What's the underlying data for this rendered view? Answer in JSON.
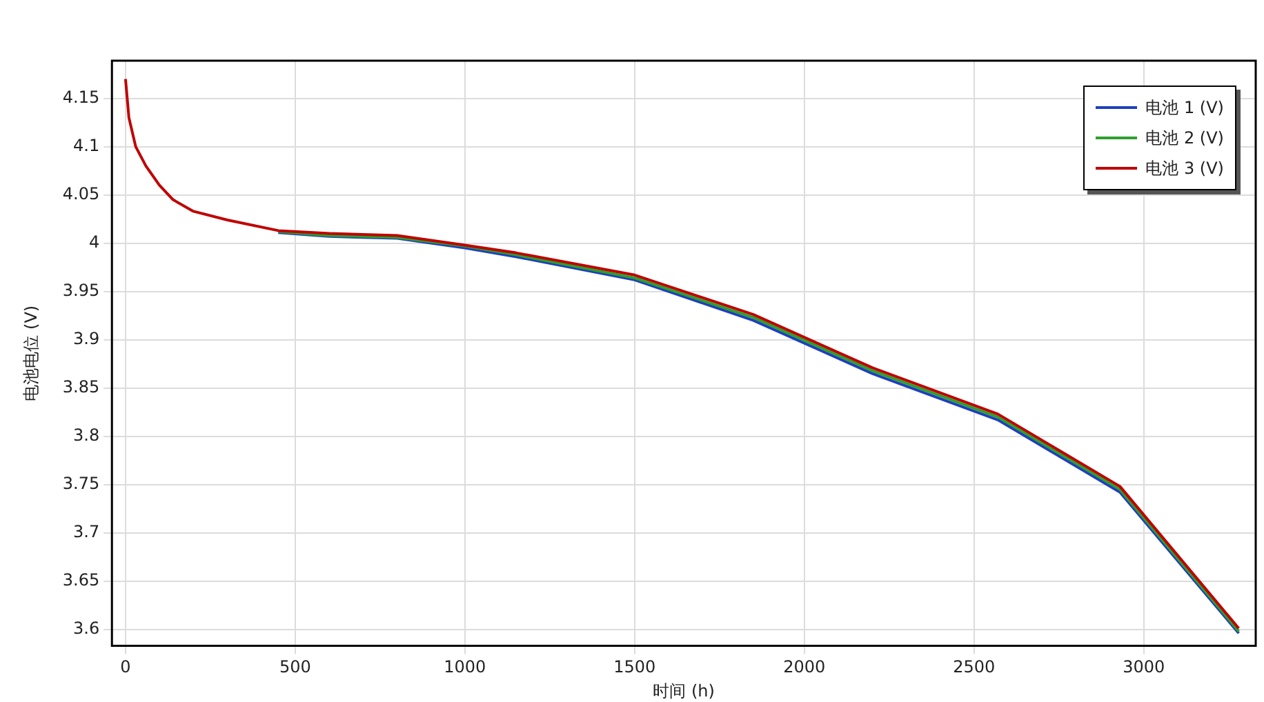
{
  "chart_data": {
    "type": "line",
    "xlabel": "时间 (h)",
    "ylabel": "电池电位 (V)",
    "xlim": [
      -40,
      3330
    ],
    "ylim": [
      3.583,
      4.189
    ],
    "xticks": [
      0,
      500,
      1000,
      1500,
      2000,
      2500,
      3000
    ],
    "yticks": [
      3.6,
      3.65,
      3.7,
      3.75,
      3.8,
      3.85,
      3.9,
      3.95,
      4,
      4.05,
      4.1,
      4.15
    ],
    "grid": true,
    "legend": "top right",
    "marker": "none",
    "line_style": "solid",
    "x": [
      0,
      10,
      30,
      60,
      100,
      140,
      200,
      300,
      450,
      600,
      800,
      1000,
      1150,
      1500,
      1850,
      2200,
      2570,
      2930,
      3280
    ],
    "series": [
      {
        "name": "电池 1 (V)",
        "color": "#1f3fbf",
        "values": [
          null,
          null,
          null,
          null,
          null,
          null,
          null,
          null,
          4.011,
          4.007,
          4.005,
          3.995,
          3.986,
          3.962,
          3.92,
          3.865,
          3.817,
          3.742,
          3.596
        ]
      },
      {
        "name": "电池 2 (V)",
        "color": "#2ca02c",
        "values": [
          null,
          null,
          null,
          null,
          null,
          null,
          null,
          null,
          4.012,
          4.008,
          4.006,
          3.997,
          3.988,
          3.964,
          3.923,
          3.868,
          3.82,
          3.745,
          3.598
        ]
      },
      {
        "name": "电池 3 (V)",
        "color": "#c00000",
        "values": [
          4.17,
          4.13,
          4.1,
          4.08,
          4.06,
          4.045,
          4.033,
          4.024,
          4.013,
          4.01,
          4.008,
          3.998,
          3.99,
          3.967,
          3.926,
          3.871,
          3.823,
          3.748,
          3.601
        ]
      }
    ]
  }
}
